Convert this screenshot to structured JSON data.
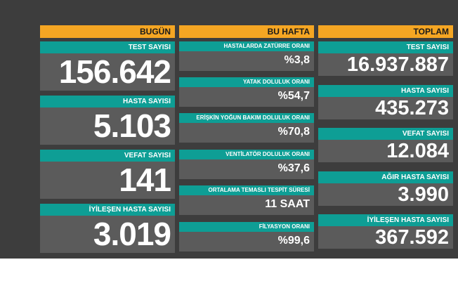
{
  "today": {
    "header": "BUGÜN",
    "items": [
      {
        "label": "TEST SAYISI",
        "value": "156.642"
      },
      {
        "label": "HASTA SAYISI",
        "value": "5.103"
      },
      {
        "label": "VEFAT SAYISI",
        "value": "141"
      },
      {
        "label": "İYİLEŞEN HASTA SAYISI",
        "value": "3.019"
      }
    ]
  },
  "week": {
    "header": "BU HAFTA",
    "items": [
      {
        "label": "HASTALARDA ZATÜRRE ORANI",
        "value": "%3,8"
      },
      {
        "label": "YATAK DOLULUK ORANI",
        "value": "%54,7"
      },
      {
        "label": "ERİŞKİN YOĞUN BAKIM DOLULUK ORANI",
        "value": "%70,8"
      },
      {
        "label": "VENTİLATÖR DOLULUK ORANI",
        "value": "%37,6"
      },
      {
        "label": "ORTALAMA TEMASLI TESPİT SÜRESİ",
        "value": "11 SAAT"
      },
      {
        "label": "FİLYASYON ORANI",
        "value": "%99,6"
      }
    ]
  },
  "total": {
    "header": "TOPLAM",
    "items": [
      {
        "label": "TEST SAYISI",
        "value": "16.937.887"
      },
      {
        "label": "HASTA SAYISI",
        "value": "435.273"
      },
      {
        "label": "VEFAT SAYISI",
        "value": "12.084"
      },
      {
        "label": "AĞIR HASTA SAYISI",
        "value": "3.990"
      },
      {
        "label": "İYİLEŞEN HASTA SAYISI",
        "value": "367.592"
      }
    ]
  },
  "colors": {
    "background": "#3d3d3d",
    "header": "#f5a623",
    "label": "#0e9e95",
    "card": "#5b5b5b"
  }
}
